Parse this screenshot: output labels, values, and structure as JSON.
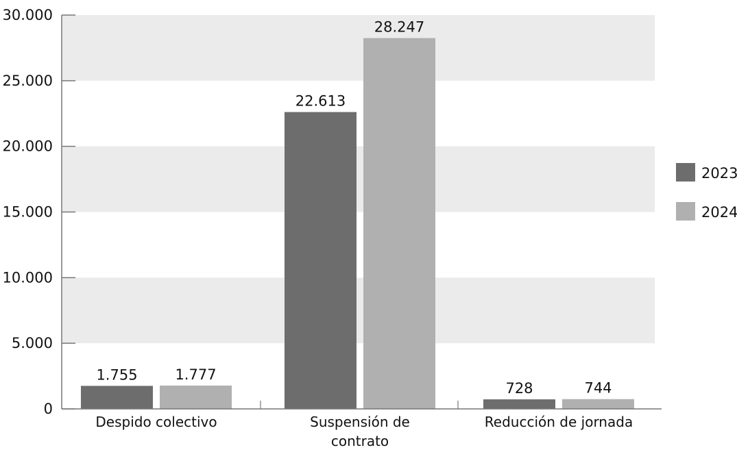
{
  "chart_data": {
    "type": "bar",
    "categories": [
      "Despido colectivo",
      "Suspensión de contrato",
      "Reducción de jornada"
    ],
    "category_label_lines": [
      [
        "Despido colectivo"
      ],
      [
        "Suspensión de",
        "contrato"
      ],
      [
        "Reducción de jornada"
      ]
    ],
    "series": [
      {
        "name": "2023",
        "color": "#6d6d6d",
        "values": [
          1755,
          22613,
          728
        ],
        "labels": [
          "1.755",
          "22.613",
          "728"
        ]
      },
      {
        "name": "2024",
        "color": "#b0b0b0",
        "values": [
          1777,
          28247,
          744
        ],
        "labels": [
          "1.777",
          "28.247",
          "744"
        ]
      }
    ],
    "ylim": [
      0,
      30000
    ],
    "yticks": [
      0,
      5000,
      10000,
      15000,
      20000,
      25000,
      30000
    ],
    "ytick_labels": [
      "0",
      "5.000",
      "10.000",
      "15.000",
      "20.000",
      "25.000",
      "30.000"
    ],
    "grid": "alternating horizontal bands",
    "legend_position": "right",
    "title": "",
    "xlabel": "",
    "ylabel": ""
  }
}
